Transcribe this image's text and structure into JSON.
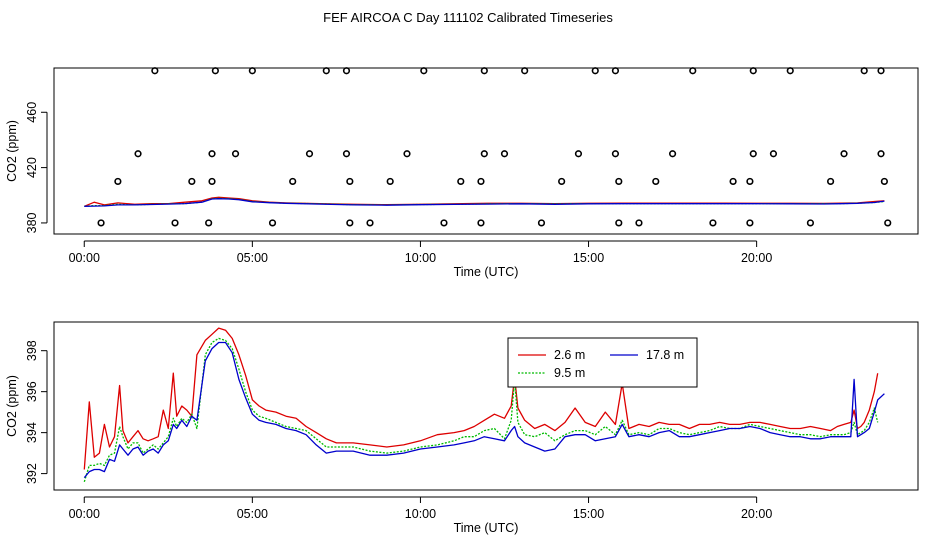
{
  "figure_title": "FEF AIRCOA C  Day 111102  Calibrated Timeseries",
  "colors": {
    "s1": "#dd0000",
    "s2": "#00bb00",
    "s3": "#0000cc",
    "axis": "#000000",
    "markers": "#000000"
  },
  "chart_data": [
    {
      "type": "line",
      "title": "",
      "xlabel": "Time (UTC)",
      "ylabel": "CO2 (ppm)",
      "xlim": [
        -0.9,
        24.8
      ],
      "ylim": [
        372,
        492
      ],
      "xticks": [
        0,
        5,
        10,
        15,
        20
      ],
      "xtick_labels": [
        "00:00",
        "05:00",
        "10:00",
        "15:00",
        "20:00"
      ],
      "yticks": [
        380,
        420,
        460
      ],
      "ytick_labels": [
        "380",
        "420",
        "460"
      ],
      "series": [
        {
          "name": "2.6 m",
          "color": "#dd0000",
          "x": [
            0,
            0.3,
            0.6,
            1,
            1.5,
            2,
            2.5,
            3,
            3.5,
            3.8,
            4,
            4.3,
            4.6,
            5,
            5.5,
            6,
            7,
            8,
            9,
            10,
            11,
            12,
            13,
            14,
            15,
            16,
            17,
            18,
            19,
            20,
            21,
            22,
            22.5,
            23,
            23.5,
            23.8
          ],
          "y": [
            392,
            395,
            393,
            394.5,
            393.5,
            394,
            394,
            395,
            396,
            398,
            398.5,
            398,
            397.5,
            396,
            395,
            394.5,
            394,
            393.5,
            393.2,
            393.5,
            393.8,
            394.2,
            394.2,
            394,
            394.2,
            394.3,
            394.3,
            394.3,
            394.3,
            394.2,
            394.2,
            394.1,
            394.3,
            394.5,
            395.5,
            396
          ]
        },
        {
          "name": "9.5 m",
          "color": "#00bb00",
          "x": [
            0,
            0.3,
            0.6,
            1,
            1.5,
            2,
            2.5,
            3,
            3.5,
            3.8,
            4,
            4.3,
            4.6,
            5,
            5.5,
            6,
            7,
            8,
            9,
            10,
            11,
            12,
            13,
            14,
            15,
            16,
            17,
            18,
            19,
            20,
            21,
            22,
            22.5,
            23,
            23.5,
            23.8
          ],
          "y": [
            392,
            392.5,
            392.5,
            393.5,
            393,
            393.5,
            393.8,
            394,
            395,
            397.5,
            397.8,
            397.5,
            397,
            395.5,
            394.8,
            394.3,
            393.8,
            393.2,
            393,
            393.3,
            393.5,
            393.8,
            394,
            393.8,
            394,
            394,
            394,
            394,
            394,
            394,
            394,
            393.9,
            394,
            394.3,
            394.8,
            395.5
          ]
        },
        {
          "name": "17.8 m",
          "color": "#0000cc",
          "x": [
            0,
            0.3,
            0.6,
            1,
            1.5,
            2,
            2.5,
            3,
            3.5,
            3.8,
            4,
            4.3,
            4.6,
            5,
            5.5,
            6,
            7,
            8,
            9,
            10,
            11,
            12,
            13,
            14,
            15,
            16,
            17,
            18,
            19,
            20,
            21,
            22,
            22.5,
            23,
            23.5,
            23.8
          ],
          "y": [
            392,
            392.2,
            392.3,
            393,
            393,
            393.3,
            393.6,
            394,
            395,
            397.3,
            397.5,
            397.3,
            396.8,
            395.3,
            394.6,
            394.2,
            393.6,
            393,
            392.8,
            393.2,
            393.4,
            393.6,
            393.8,
            393.5,
            393.8,
            393.9,
            393.9,
            393.9,
            393.9,
            393.9,
            393.8,
            393.7,
            393.9,
            394.2,
            394.8,
            395.8
          ]
        }
      ],
      "markers": {
        "x": [
          2.1,
          3.9,
          5.0,
          7.2,
          7.8,
          10.1,
          11.9,
          13.1,
          15.2,
          15.8,
          18.1,
          19.9,
          21.0,
          23.2,
          23.7,
          1.6,
          3.8,
          4.5,
          6.7,
          7.8,
          9.6,
          11.9,
          12.5,
          14.7,
          15.8,
          17.5,
          19.9,
          20.5,
          22.6,
          23.7,
          1.0,
          3.2,
          3.8,
          6.2,
          7.9,
          9.1,
          11.2,
          11.8,
          14.2,
          15.9,
          17.0,
          19.3,
          19.8,
          22.2,
          23.8,
          0.5,
          2.7,
          3.7,
          5.6,
          7.9,
          8.5,
          10.7,
          11.8,
          13.6,
          15.9,
          16.5,
          18.7,
          19.8,
          21.6,
          23.9
        ],
        "y": [
          490,
          490,
          490,
          490,
          490,
          490,
          490,
          490,
          490,
          490,
          490,
          490,
          490,
          490,
          490,
          430,
          430,
          430,
          430,
          430,
          430,
          430,
          430,
          430,
          430,
          430,
          430,
          430,
          430,
          430,
          410,
          410,
          410,
          410,
          410,
          410,
          410,
          410,
          410,
          410,
          410,
          410,
          410,
          410,
          410,
          380,
          380,
          380,
          380,
          380,
          380,
          380,
          380,
          380,
          380,
          380,
          380,
          380,
          380,
          380
        ]
      }
    },
    {
      "type": "line",
      "title": "",
      "xlabel": "Time (UTC)",
      "ylabel": "CO2 (ppm)",
      "xlim": [
        -0.9,
        24.8
      ],
      "ylim": [
        391.2,
        399.4
      ],
      "xticks": [
        0,
        5,
        10,
        15,
        20
      ],
      "xtick_labels": [
        "00:00",
        "05:00",
        "10:00",
        "15:00",
        "20:00"
      ],
      "yticks": [
        392,
        394,
        396,
        398
      ],
      "ytick_labels": [
        "392",
        "394",
        "396",
        "398"
      ],
      "legend": {
        "entries": [
          "2.6 m",
          "9.5 m",
          "17.8 m"
        ],
        "position": "top-center"
      },
      "series": [
        {
          "name": "2.6 m",
          "color": "#dd0000",
          "x": [
            0,
            0.15,
            0.3,
            0.45,
            0.6,
            0.75,
            0.9,
            1.05,
            1.15,
            1.3,
            1.45,
            1.6,
            1.75,
            1.9,
            2.05,
            2.2,
            2.35,
            2.5,
            2.65,
            2.75,
            2.9,
            3.05,
            3.2,
            3.35,
            3.6,
            3.8,
            4.0,
            4.2,
            4.4,
            4.6,
            4.8,
            5.0,
            5.2,
            5.4,
            5.7,
            6.0,
            6.3,
            6.6,
            6.9,
            7.2,
            7.5,
            8.0,
            8.5,
            9.0,
            9.5,
            10.0,
            10.5,
            11.0,
            11.3,
            11.6,
            11.9,
            12.2,
            12.5,
            12.7,
            12.8,
            12.9,
            13.1,
            13.4,
            13.7,
            14.0,
            14.3,
            14.6,
            14.9,
            15.2,
            15.5,
            15.8,
            16.0,
            16.2,
            16.5,
            16.8,
            17.1,
            17.4,
            17.7,
            18.0,
            18.3,
            18.6,
            18.9,
            19.2,
            19.5,
            19.8,
            20.1,
            20.4,
            20.7,
            21.0,
            21.3,
            21.6,
            21.9,
            22.2,
            22.4,
            22.6,
            22.8,
            22.9,
            23.0,
            23.1,
            23.2,
            23.35,
            23.5,
            23.6
          ],
          "y": [
            392.2,
            395.5,
            392.8,
            393.0,
            394.4,
            393.3,
            393.8,
            396.3,
            394.1,
            393.5,
            393.8,
            394.1,
            393.7,
            393.6,
            393.7,
            393.8,
            395.1,
            394.2,
            396.9,
            394.8,
            395.3,
            395.1,
            394.8,
            397.8,
            398.5,
            398.8,
            399.1,
            399.0,
            398.6,
            397.8,
            396.8,
            395.6,
            395.3,
            395.1,
            395.0,
            394.8,
            394.7,
            394.3,
            394.0,
            393.7,
            393.5,
            393.5,
            393.4,
            393.3,
            393.4,
            393.6,
            393.9,
            394.0,
            394.1,
            394.3,
            394.6,
            394.9,
            394.7,
            395.3,
            396.7,
            395.2,
            394.6,
            394.2,
            394.4,
            394.1,
            394.5,
            395.2,
            394.5,
            394.3,
            395.0,
            394.4,
            396.4,
            394.2,
            394.4,
            394.3,
            394.5,
            394.4,
            394.4,
            394.2,
            394.4,
            394.4,
            394.5,
            394.4,
            394.4,
            394.5,
            394.5,
            394.4,
            394.3,
            394.2,
            394.2,
            394.3,
            394.2,
            394.1,
            394.3,
            394.4,
            394.5,
            395.1,
            394.2,
            394.3,
            394.5,
            395.1,
            396.0,
            396.9
          ]
        },
        {
          "name": "9.5 m",
          "color": "#00bb00",
          "x": [
            0,
            0.15,
            0.3,
            0.45,
            0.6,
            0.75,
            0.9,
            1.05,
            1.15,
            1.3,
            1.45,
            1.6,
            1.75,
            1.9,
            2.05,
            2.2,
            2.35,
            2.5,
            2.65,
            2.75,
            2.9,
            3.05,
            3.2,
            3.35,
            3.6,
            3.8,
            4.0,
            4.2,
            4.4,
            4.6,
            4.8,
            5.0,
            5.2,
            5.4,
            5.7,
            6.0,
            6.3,
            6.6,
            6.9,
            7.2,
            7.5,
            8.0,
            8.5,
            9.0,
            9.5,
            10.0,
            10.5,
            11.0,
            11.3,
            11.6,
            11.9,
            12.2,
            12.5,
            12.7,
            12.8,
            12.9,
            13.1,
            13.4,
            13.7,
            14.0,
            14.3,
            14.6,
            14.9,
            15.2,
            15.5,
            15.8,
            16.0,
            16.2,
            16.5,
            16.8,
            17.1,
            17.4,
            17.7,
            18.0,
            18.3,
            18.6,
            18.9,
            19.2,
            19.5,
            19.8,
            20.1,
            20.4,
            20.7,
            21.0,
            21.3,
            21.6,
            21.9,
            22.2,
            22.4,
            22.6,
            22.8,
            22.9,
            23.0,
            23.1,
            23.2,
            23.35,
            23.5,
            23.6
          ],
          "y": [
            391.6,
            392.4,
            392.4,
            392.5,
            392.4,
            392.9,
            393.0,
            394.3,
            393.8,
            393.2,
            393.5,
            393.5,
            393.0,
            393.2,
            393.4,
            393.2,
            393.5,
            393.8,
            394.7,
            394.3,
            394.7,
            394.5,
            394.9,
            394.2,
            397.8,
            398.4,
            398.6,
            398.5,
            398.1,
            397.1,
            396.0,
            395.1,
            394.8,
            394.7,
            394.5,
            394.3,
            394.2,
            394.1,
            393.7,
            393.3,
            393.3,
            393.3,
            393.1,
            393.0,
            393.1,
            393.3,
            393.4,
            393.6,
            393.8,
            393.8,
            394.1,
            394.2,
            393.7,
            394.6,
            396.6,
            394.5,
            393.9,
            393.8,
            394.0,
            393.6,
            393.9,
            394.1,
            394.1,
            393.9,
            394.3,
            393.9,
            394.6,
            393.9,
            394.0,
            393.9,
            394.2,
            394.2,
            394.0,
            393.9,
            394.0,
            394.1,
            394.3,
            394.2,
            394.2,
            394.4,
            394.3,
            394.2,
            394.1,
            394.0,
            393.9,
            393.9,
            393.8,
            393.9,
            393.9,
            393.9,
            394.0,
            394.5,
            393.9,
            394.0,
            394.1,
            394.5,
            395.2,
            394.5
          ]
        },
        {
          "name": "17.8 m",
          "color": "#0000cc",
          "x": [
            0,
            0.15,
            0.3,
            0.45,
            0.6,
            0.75,
            0.9,
            1.05,
            1.15,
            1.3,
            1.45,
            1.6,
            1.75,
            1.9,
            2.05,
            2.2,
            2.35,
            2.5,
            2.65,
            2.75,
            2.9,
            3.05,
            3.2,
            3.35,
            3.6,
            3.8,
            4.0,
            4.2,
            4.4,
            4.6,
            4.8,
            5.0,
            5.2,
            5.4,
            5.7,
            6.0,
            6.3,
            6.6,
            6.9,
            7.2,
            7.5,
            8.0,
            8.5,
            9.0,
            9.5,
            10.0,
            10.5,
            11.0,
            11.3,
            11.6,
            11.9,
            12.2,
            12.5,
            12.7,
            12.8,
            12.9,
            13.1,
            13.4,
            13.7,
            14.0,
            14.3,
            14.6,
            14.9,
            15.2,
            15.5,
            15.8,
            16.0,
            16.2,
            16.5,
            16.8,
            17.1,
            17.4,
            17.7,
            18.0,
            18.3,
            18.6,
            18.9,
            19.2,
            19.5,
            19.8,
            20.1,
            20.4,
            20.7,
            21.0,
            21.3,
            21.6,
            21.9,
            22.2,
            22.4,
            22.6,
            22.8,
            22.9,
            23.0,
            23.1,
            23.2,
            23.35,
            23.5,
            23.6,
            23.8
          ],
          "y": [
            391.8,
            392.1,
            392.2,
            392.2,
            392.1,
            392.7,
            392.6,
            393.4,
            393.2,
            392.9,
            393.2,
            393.3,
            392.9,
            393.1,
            393.2,
            393.0,
            393.4,
            393.6,
            394.4,
            394.2,
            394.6,
            394.3,
            394.8,
            394.6,
            397.5,
            398.1,
            398.4,
            398.4,
            397.9,
            396.6,
            395.7,
            394.9,
            394.6,
            394.5,
            394.4,
            394.2,
            394.1,
            393.9,
            393.4,
            393.0,
            393.1,
            393.1,
            392.9,
            392.9,
            393.0,
            393.2,
            393.3,
            393.4,
            393.5,
            393.6,
            393.8,
            393.7,
            393.6,
            394.1,
            394.3,
            393.8,
            393.5,
            393.3,
            393.1,
            393.2,
            393.8,
            393.9,
            393.9,
            393.6,
            393.7,
            393.8,
            394.4,
            393.8,
            393.9,
            393.8,
            394.0,
            394.1,
            393.8,
            393.8,
            393.9,
            394.0,
            394.1,
            394.2,
            394.2,
            394.3,
            394.2,
            394.0,
            393.9,
            393.8,
            393.8,
            393.7,
            393.7,
            393.8,
            393.8,
            393.8,
            393.8,
            396.6,
            393.8,
            393.9,
            394.0,
            394.2,
            395.0,
            395.6,
            395.9
          ]
        }
      ]
    }
  ]
}
